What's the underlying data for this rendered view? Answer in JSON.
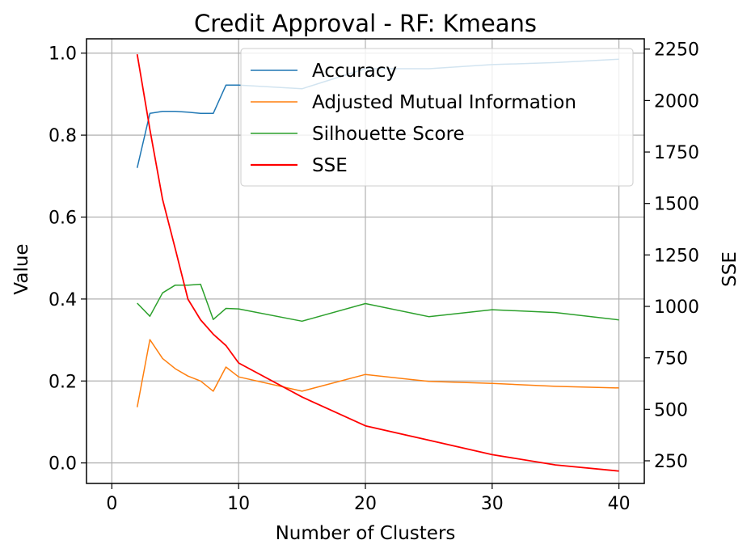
{
  "chart_data": {
    "type": "line",
    "title": "Credit Approval - RF: Kmeans",
    "xlabel": "Number of Clusters",
    "ylabel": "Value",
    "y2label": "SSE",
    "xlim": [
      -2,
      42
    ],
    "ylim": [
      -0.05,
      1.035
    ],
    "y2lim": [
      140,
      2300
    ],
    "xticks": [
      0,
      10,
      20,
      30,
      40
    ],
    "yticks": [
      0.0,
      0.2,
      0.4,
      0.6,
      0.8,
      1.0
    ],
    "y2ticks": [
      250,
      500,
      750,
      1000,
      1250,
      1500,
      1750,
      2000,
      2250
    ],
    "grid": true,
    "legend_position": "upper right",
    "x": [
      2,
      3,
      4,
      5,
      6,
      7,
      8,
      9,
      10,
      15,
      20,
      25,
      30,
      35,
      40
    ],
    "series": [
      {
        "name": "Accuracy",
        "axis": "left",
        "color": "#1f77b4",
        "values": [
          0.72,
          0.853,
          0.858,
          0.858,
          0.856,
          0.853,
          0.853,
          0.922,
          0.922,
          0.913,
          0.962,
          0.962,
          0.972,
          0.977,
          0.985
        ]
      },
      {
        "name": "Adjusted Mutual Information",
        "axis": "left",
        "color": "#ff7f0e",
        "values": [
          0.136,
          0.301,
          0.255,
          0.23,
          0.212,
          0.2,
          0.175,
          0.234,
          0.21,
          0.175,
          0.216,
          0.199,
          0.194,
          0.187,
          0.183
        ]
      },
      {
        "name": "Silhouette Score",
        "axis": "left",
        "color": "#2ca02c",
        "values": [
          0.39,
          0.358,
          0.415,
          0.434,
          0.434,
          0.436,
          0.35,
          0.377,
          0.376,
          0.346,
          0.389,
          0.357,
          0.374,
          0.367,
          0.349
        ]
      },
      {
        "name": "SSE",
        "axis": "right",
        "color": "#ff0000",
        "values": [
          2225,
          1860,
          1520,
          1280,
          1035,
          935,
          865,
          810,
          725,
          560,
          420,
          350,
          280,
          230,
          200
        ]
      }
    ]
  }
}
